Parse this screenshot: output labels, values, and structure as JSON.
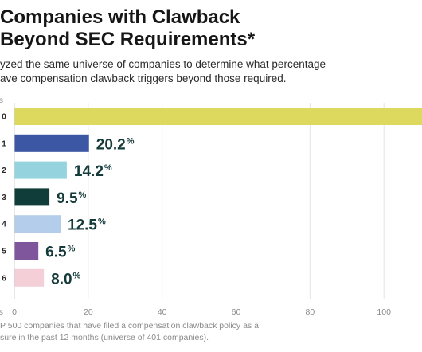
{
  "header": {
    "title_line1": "Companies with Clawback",
    "title_line2": "Beyond SEC Requirements*",
    "subtitle_line1": "yzed the same universe of companies to determine what percentage",
    "subtitle_line2": "ave compensation clawback triggers beyond those required."
  },
  "footnote": {
    "line1": "P 500 companies that have filed a compensation clawback policy as a",
    "line2": "sure in the past 12 months (universe of 401 companies)."
  },
  "chart_data": {
    "type": "bar",
    "orientation": "horizontal",
    "title": "Companies with Clawback Beyond SEC Requirements*",
    "category_axis_label": "rs",
    "value_axis_label": "es",
    "categories": [
      "0",
      "1",
      "2",
      "3",
      "4",
      "5",
      "6"
    ],
    "values": [
      null,
      20.2,
      14.2,
      9.5,
      12.5,
      6.5,
      8.0
    ],
    "labels": [
      "",
      "20.2",
      "14.2",
      "9.5",
      "12.5",
      "6.5",
      "8.0"
    ],
    "label_suffix": "%",
    "xlim": [
      0,
      120
    ],
    "x_ticks": [
      0,
      20,
      40,
      60,
      80,
      100
    ],
    "colors": [
      "#dcd95e",
      "#3c57a3",
      "#95d4df",
      "#103c3a",
      "#b3cdea",
      "#7f559c",
      "#f4cfd8"
    ],
    "grid": "vertical"
  }
}
